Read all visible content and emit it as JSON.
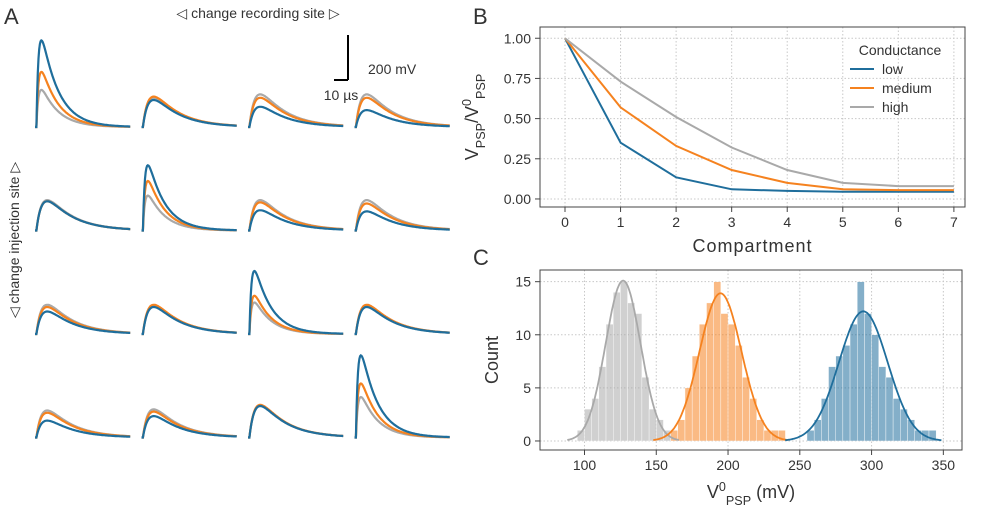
{
  "chart_data": [
    {
      "type": "traces",
      "panel": "A",
      "col_label": "◁ change recording site ▷",
      "row_label": "◁ change injection site ▷",
      "colors": [
        "#1f6e9c",
        "#f5821f",
        "#a9a9a9"
      ],
      "peaks": [
        [
          [
            385,
            245,
            165
          ],
          [
            120,
            135,
            130
          ],
          [
            90,
            130,
            145
          ],
          [
            75,
            130,
            145
          ]
        ],
        [
          [
            130,
            130,
            135
          ],
          [
            290,
            220,
            155
          ],
          [
            90,
            125,
            135
          ],
          [
            85,
            120,
            135
          ]
        ],
        [
          [
            100,
            120,
            130
          ],
          [
            120,
            130,
            125
          ],
          [
            280,
            170,
            140
          ],
          [
            120,
            130,
            125
          ]
        ],
        [
          [
            75,
            110,
            120
          ],
          [
            95,
            115,
            125
          ],
          [
            140,
            145,
            140
          ],
          [
            365,
            240,
            180
          ]
        ]
      ],
      "scalebar": {
        "y_value": 200,
        "y_label": "200 mV",
        "x_value": 10,
        "x_label": "10 µs"
      }
    },
    {
      "type": "line",
      "panel": "B",
      "ylabel": [
        {
          "text": "V"
        },
        {
          "text": "PSP",
          "shift": "sub"
        },
        {
          "text": "/V"
        },
        {
          "text": "0",
          "shift": "super"
        },
        {
          "text": "PSP",
          "shift": "sub"
        }
      ],
      "xlabel": "Compartment",
      "x": [
        0,
        1,
        2,
        3,
        4,
        5,
        6,
        7
      ],
      "series": [
        {
          "name": "low",
          "color": "#1f6e9c",
          "values": [
            1.0,
            0.35,
            0.135,
            0.06,
            0.05,
            0.045,
            0.045,
            0.045
          ]
        },
        {
          "name": "medium",
          "color": "#f5821f",
          "values": [
            1.0,
            0.57,
            0.33,
            0.18,
            0.1,
            0.06,
            0.055,
            0.055
          ]
        },
        {
          "name": "high",
          "color": "#a9a9a9",
          "values": [
            1.0,
            0.73,
            0.51,
            0.32,
            0.18,
            0.1,
            0.08,
            0.08
          ]
        }
      ],
      "legend_title": "Conductance",
      "legend": "upper right",
      "xlim": [
        -0.45,
        7.2
      ],
      "ylim": [
        -0.05,
        1.07
      ],
      "xticks": [
        0,
        1,
        2,
        3,
        4,
        5,
        6,
        7
      ],
      "yticks": [
        {
          "value": 0,
          "label": "0.00"
        },
        {
          "value": 0.25,
          "label": "0.25"
        },
        {
          "value": 0.5,
          "label": "0.50"
        },
        {
          "value": 0.75,
          "label": "0.75"
        },
        {
          "value": 1,
          "label": "1.00"
        }
      ],
      "grid": true
    },
    {
      "type": "histogram",
      "panel": "C",
      "xlabel": [
        {
          "text": "V"
        },
        {
          "text": "0",
          "shift": "super"
        },
        {
          "text": "PSP",
          "shift": "sub"
        },
        {
          "text": " (mV)"
        }
      ],
      "ylabel": "Count",
      "series": [
        {
          "color": "#a9a9a9",
          "bins": [
            95,
            100,
            105,
            110,
            115,
            120,
            125,
            130,
            135,
            140,
            145,
            150,
            155,
            160
          ],
          "counts": [
            1,
            3,
            4,
            7,
            11,
            14,
            15,
            13,
            12,
            6,
            3,
            2,
            1
          ]
        },
        {
          "color": "#f5821f",
          "bins": [
            160,
            165,
            170,
            175,
            180,
            185,
            190,
            195,
            200,
            205,
            210,
            215,
            220,
            225,
            230,
            235,
            240
          ],
          "counts": [
            1,
            2,
            5,
            8,
            11,
            13,
            15,
            12,
            11,
            9,
            6,
            4,
            2,
            1,
            1,
            1
          ]
        },
        {
          "color": "#1f6e9c",
          "bins": [
            255,
            260,
            265,
            270,
            275,
            280,
            285,
            290,
            295,
            300,
            305,
            310,
            315,
            320,
            325,
            330,
            335,
            340,
            345
          ],
          "counts": [
            1,
            2,
            4,
            7,
            8,
            9,
            11,
            15,
            12,
            10,
            7,
            6,
            4,
            3,
            2,
            1,
            1,
            1
          ]
        }
      ],
      "xlim": [
        69,
        363
      ],
      "ylim": [
        -0.85,
        16.1
      ],
      "xticks": [
        100,
        150,
        200,
        250,
        300,
        350
      ],
      "yticks": [
        0,
        5,
        10,
        15
      ],
      "grid": true
    }
  ]
}
